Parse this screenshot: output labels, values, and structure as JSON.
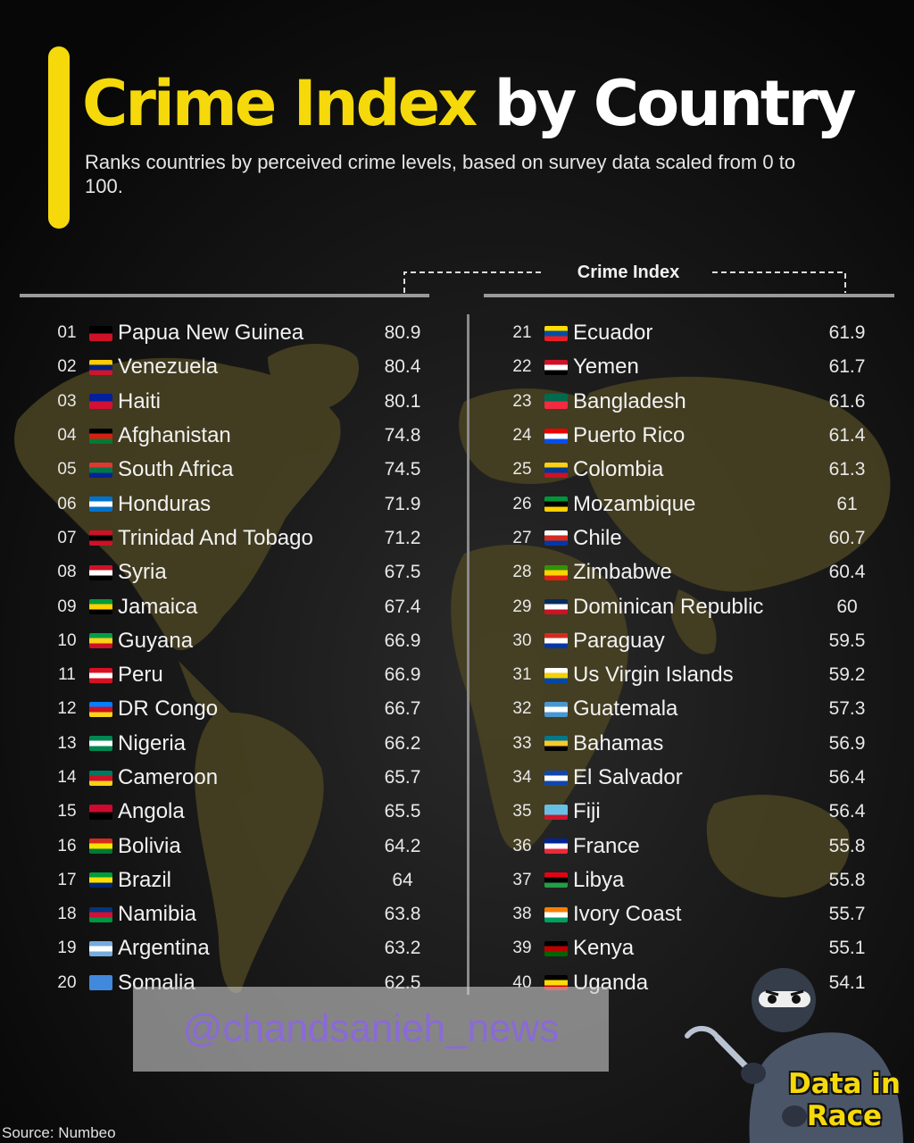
{
  "header": {
    "title_highlight": "Crime Index",
    "title_rest": " by Country",
    "subtitle": "Ranks countries by perceived crime levels, based on survey data scaled from 0 to 100.",
    "column_header": "Crime Index"
  },
  "chart_data": {
    "type": "table",
    "title": "Crime Index by Country",
    "subtitle": "Ranks countries by perceived crime levels, based on survey data scaled from 0 to 100.",
    "value_label": "Crime Index",
    "rows": [
      {
        "rank": "01",
        "country": "Papua New Guinea",
        "value": "80.9",
        "flag": "papua-new-guinea-flag-icon"
      },
      {
        "rank": "02",
        "country": "Venezuela",
        "value": "80.4",
        "flag": "venezuela-flag-icon"
      },
      {
        "rank": "03",
        "country": "Haiti",
        "value": "80.1",
        "flag": "haiti-flag-icon"
      },
      {
        "rank": "04",
        "country": "Afghanistan",
        "value": "74.8",
        "flag": "afghanistan-flag-icon"
      },
      {
        "rank": "05",
        "country": "South Africa",
        "value": "74.5",
        "flag": "south-africa-flag-icon"
      },
      {
        "rank": "06",
        "country": "Honduras",
        "value": "71.9",
        "flag": "honduras-flag-icon"
      },
      {
        "rank": "07",
        "country": "Trinidad And Tobago",
        "value": "71.2",
        "flag": "trinidad-and-tobago-flag-icon"
      },
      {
        "rank": "08",
        "country": "Syria",
        "value": "67.5",
        "flag": "syria-flag-icon"
      },
      {
        "rank": "09",
        "country": "Jamaica",
        "value": "67.4",
        "flag": "jamaica-flag-icon"
      },
      {
        "rank": "10",
        "country": "Guyana",
        "value": "66.9",
        "flag": "guyana-flag-icon"
      },
      {
        "rank": "11",
        "country": "Peru",
        "value": "66.9",
        "flag": "peru-flag-icon"
      },
      {
        "rank": "12",
        "country": "DR Congo",
        "value": "66.7",
        "flag": "dr-congo-flag-icon"
      },
      {
        "rank": "13",
        "country": "Nigeria",
        "value": "66.2",
        "flag": "nigeria-flag-icon"
      },
      {
        "rank": "14",
        "country": "Cameroon",
        "value": "65.7",
        "flag": "cameroon-flag-icon"
      },
      {
        "rank": "15",
        "country": "Angola",
        "value": "65.5",
        "flag": "angola-flag-icon"
      },
      {
        "rank": "16",
        "country": "Bolivia",
        "value": "64.2",
        "flag": "bolivia-flag-icon"
      },
      {
        "rank": "17",
        "country": "Brazil",
        "value": "64",
        "flag": "brazil-flag-icon"
      },
      {
        "rank": "18",
        "country": "Namibia",
        "value": "63.8",
        "flag": "namibia-flag-icon"
      },
      {
        "rank": "19",
        "country": "Argentina",
        "value": "63.2",
        "flag": "argentina-flag-icon"
      },
      {
        "rank": "20",
        "country": "Somalia",
        "value": "62.5",
        "flag": "somalia-flag-icon"
      },
      {
        "rank": "21",
        "country": "Ecuador",
        "value": "61.9",
        "flag": "ecuador-flag-icon"
      },
      {
        "rank": "22",
        "country": "Yemen",
        "value": "61.7",
        "flag": "yemen-flag-icon"
      },
      {
        "rank": "23",
        "country": "Bangladesh",
        "value": "61.6",
        "flag": "bangladesh-flag-icon"
      },
      {
        "rank": "24",
        "country": "Puerto Rico",
        "value": "61.4",
        "flag": "puerto-rico-flag-icon"
      },
      {
        "rank": "25",
        "country": "Colombia",
        "value": "61.3",
        "flag": "colombia-flag-icon"
      },
      {
        "rank": "26",
        "country": "Mozambique",
        "value": "61",
        "flag": "mozambique-flag-icon"
      },
      {
        "rank": "27",
        "country": "Chile",
        "value": "60.7",
        "flag": "chile-flag-icon"
      },
      {
        "rank": "28",
        "country": "Zimbabwe",
        "value": "60.4",
        "flag": "zimbabwe-flag-icon"
      },
      {
        "rank": "29",
        "country": "Dominican Republic",
        "value": "60",
        "flag": "dominican-republic-flag-icon"
      },
      {
        "rank": "30",
        "country": "Paraguay",
        "value": "59.5",
        "flag": "paraguay-flag-icon"
      },
      {
        "rank": "31",
        "country": "Us Virgin Islands",
        "value": "59.2",
        "flag": "us-virgin-islands-flag-icon"
      },
      {
        "rank": "32",
        "country": "Guatemala",
        "value": "57.3",
        "flag": "guatemala-flag-icon"
      },
      {
        "rank": "33",
        "country": "Bahamas",
        "value": "56.9",
        "flag": "bahamas-flag-icon"
      },
      {
        "rank": "34",
        "country": "El Salvador",
        "value": "56.4",
        "flag": "el-salvador-flag-icon"
      },
      {
        "rank": "35",
        "country": "Fiji",
        "value": "56.4",
        "flag": "fiji-flag-icon"
      },
      {
        "rank": "36",
        "country": "France",
        "value": "55.8",
        "flag": "france-flag-icon"
      },
      {
        "rank": "37",
        "country": "Libya",
        "value": "55.8",
        "flag": "libya-flag-icon"
      },
      {
        "rank": "38",
        "country": "Ivory Coast",
        "value": "55.7",
        "flag": "ivory-coast-flag-icon"
      },
      {
        "rank": "39",
        "country": "Kenya",
        "value": "55.1",
        "flag": "kenya-flag-icon"
      },
      {
        "rank": "40",
        "country": "Uganda",
        "value": "54.1",
        "flag": "uganda-flag-icon"
      }
    ]
  },
  "flag_colors": {
    "Papua New Guinea": [
      "#000000",
      "#ce1126"
    ],
    "Venezuela": [
      "#ffcc00",
      "#00247d",
      "#cf142b"
    ],
    "Haiti": [
      "#00209f",
      "#d21034"
    ],
    "Afghanistan": [
      "#000000",
      "#d32011",
      "#007a36"
    ],
    "South Africa": [
      "#de3831",
      "#007749",
      "#002395"
    ],
    "Honduras": [
      "#0073cf",
      "#ffffff",
      "#0073cf"
    ],
    "Trinidad And Tobago": [
      "#ce1126",
      "#000000",
      "#ce1126"
    ],
    "Syria": [
      "#ce1126",
      "#ffffff",
      "#000000"
    ],
    "Jamaica": [
      "#009b3a",
      "#fed100",
      "#000000"
    ],
    "Guyana": [
      "#009e49",
      "#fcd116",
      "#ce1126"
    ],
    "Peru": [
      "#d91023",
      "#ffffff",
      "#d91023"
    ],
    "DR Congo": [
      "#007fff",
      "#ce1021",
      "#f7d618"
    ],
    "Nigeria": [
      "#008751",
      "#ffffff",
      "#008751"
    ],
    "Cameroon": [
      "#007a5e",
      "#ce1126",
      "#fcd116"
    ],
    "Angola": [
      "#cc092f",
      "#000000"
    ],
    "Bolivia": [
      "#d52b1e",
      "#f9e300",
      "#007934"
    ],
    "Brazil": [
      "#009c3b",
      "#ffdf00",
      "#002776"
    ],
    "Namibia": [
      "#003580",
      "#d21034",
      "#009543"
    ],
    "Argentina": [
      "#74acdf",
      "#ffffff",
      "#74acdf"
    ],
    "Somalia": [
      "#4189dd",
      "#4189dd"
    ],
    "Ecuador": [
      "#ffdd00",
      "#034ea2",
      "#ed1c24"
    ],
    "Yemen": [
      "#ce1126",
      "#ffffff",
      "#000000"
    ],
    "Bangladesh": [
      "#006a4e",
      "#f42a41"
    ],
    "Puerto Rico": [
      "#ed0000",
      "#ffffff",
      "#0050f0"
    ],
    "Colombia": [
      "#fcd116",
      "#003893",
      "#ce1126"
    ],
    "Mozambique": [
      "#009739",
      "#000000",
      "#ffd100"
    ],
    "Chile": [
      "#ffffff",
      "#d52b1e",
      "#0039a6"
    ],
    "Zimbabwe": [
      "#319208",
      "#ffd200",
      "#de2010"
    ],
    "Dominican Republic": [
      "#002d62",
      "#ffffff",
      "#ce1126"
    ],
    "Paraguay": [
      "#d52b1e",
      "#ffffff",
      "#0038a8"
    ],
    "Us Virgin Islands": [
      "#ffffff",
      "#f3d200",
      "#0047ab"
    ],
    "Guatemala": [
      "#4997d0",
      "#ffffff",
      "#4997d0"
    ],
    "Bahamas": [
      "#00778b",
      "#ffc72c",
      "#000000"
    ],
    "El Salvador": [
      "#0f47af",
      "#ffffff",
      "#0f47af"
    ],
    "Fiji": [
      "#68bfe5",
      "#68bfe5",
      "#cf142b"
    ],
    "France": [
      "#002395",
      "#ffffff",
      "#ed2939"
    ],
    "Libya": [
      "#e70013",
      "#000000",
      "#239e46"
    ],
    "Ivory Coast": [
      "#f77f00",
      "#ffffff",
      "#009e60"
    ],
    "Kenya": [
      "#000000",
      "#bb0000",
      "#006600"
    ],
    "Uganda": [
      "#000000",
      "#fcdc04",
      "#d90000"
    ]
  },
  "watermark": "@chandsanieh_news",
  "source": "Source: Numbeo",
  "brand": {
    "line1": "Data in",
    "line2": "Race"
  },
  "colors": {
    "accent": "#f5d90a",
    "background": "#0b0b0b",
    "map": "#4a4322",
    "watermark_text": "#8a6ad6"
  }
}
